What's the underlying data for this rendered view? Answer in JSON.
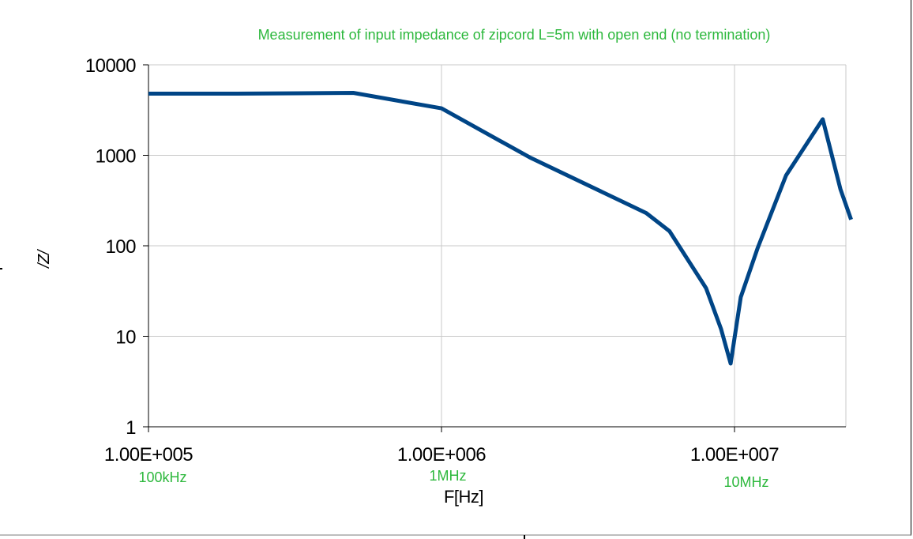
{
  "colors": {
    "series": "#004586",
    "annotation": "#2db83d",
    "grid": "#c8c8c8",
    "axis": "#000000"
  },
  "chart_data": {
    "type": "line",
    "title": "Measurement of input impedance of zipcord L=5m with open end (no termination)",
    "xlabel": "F[Hz]",
    "ylabel": "/Z/",
    "x_scale": "log",
    "y_scale": "log",
    "xlim": [
      100000,
      25000000
    ],
    "ylim": [
      1,
      10000
    ],
    "x_ticks": [
      {
        "value": 100000,
        "label": "1.00E+005",
        "note": "100kHz"
      },
      {
        "value": 1000000,
        "label": "1.00E+006",
        "note": "1MHz"
      },
      {
        "value": 10000000,
        "label": "1.00E+007",
        "note": "10MHz"
      }
    ],
    "y_ticks": [
      {
        "value": 1,
        "label": "1"
      },
      {
        "value": 10,
        "label": "10"
      },
      {
        "value": 100,
        "label": "100"
      },
      {
        "value": 1000,
        "label": "1000"
      },
      {
        "value": 10000,
        "label": "10000"
      }
    ],
    "grid": true,
    "legend": "none",
    "series": [
      {
        "x": [
          100000,
          200000,
          500000,
          1000000,
          2000000,
          5000000,
          6000000,
          8000000,
          9000000,
          9700000,
          10500000,
          12000000,
          15000000,
          20000000,
          23000000,
          25000000
        ],
        "y": [
          4800,
          4800,
          4900,
          3300,
          950,
          230,
          145,
          34,
          12,
          5,
          27,
          95,
          600,
          2500,
          420,
          195
        ]
      }
    ]
  }
}
